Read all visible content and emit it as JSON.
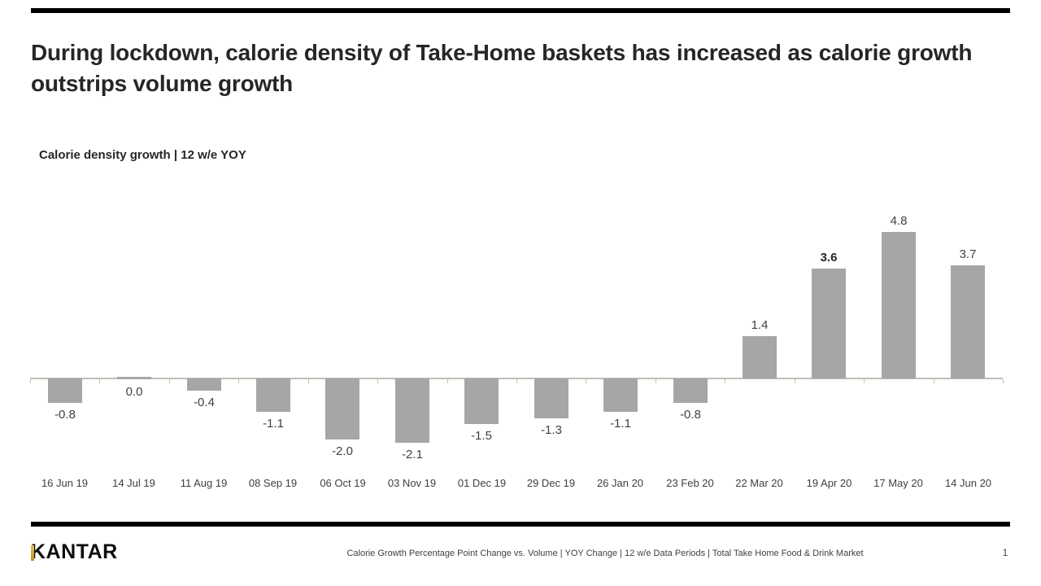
{
  "slide": {
    "title": "During lockdown, calorie density of Take-Home baskets has increased as calorie growth outstrips volume growth",
    "kicker": "Calorie density growth | 12 w/e YOY",
    "footer": {
      "logo_text": "KANTAR",
      "source_text": "Calorie Growth Percentage Point Change vs. Volume | YOY Change | 12 w/e Data Periods | Total Take Home Food & Drink Market",
      "page_number": "1"
    }
  },
  "colors": {
    "accent_black": "#000000",
    "title": "#262626",
    "bar": "#a6a6a6",
    "axis": "#c0beb5",
    "label": "#404040",
    "logo_gold": "#c9a227"
  },
  "chart_data": {
    "type": "bar",
    "title": "Calorie density growth | 12 w/e YOY",
    "categories": [
      "16 Jun 19",
      "14 Jul 19",
      "11 Aug 19",
      "08 Sep 19",
      "06 Oct 19",
      "03 Nov 19",
      "01 Dec 19",
      "29 Dec 19",
      "26 Jan 20",
      "23 Feb 20",
      "22 Mar 20",
      "19 Apr 20",
      "17 May 20",
      "14 Jun 20"
    ],
    "values": [
      -0.8,
      0.0,
      -0.4,
      -1.1,
      -2.0,
      -2.1,
      -1.5,
      -1.3,
      -1.1,
      -0.8,
      1.4,
      3.6,
      4.8,
      3.7
    ],
    "bold_value_index": 11,
    "label_decimals": 1,
    "xlabel": "",
    "ylabel": "",
    "ylim": [
      -2.5,
      5.2
    ],
    "grid": false,
    "legend": false,
    "axis_style": "x-axis drawn at zero with downward ticks, no y-axis, data labels outside bar ends"
  }
}
